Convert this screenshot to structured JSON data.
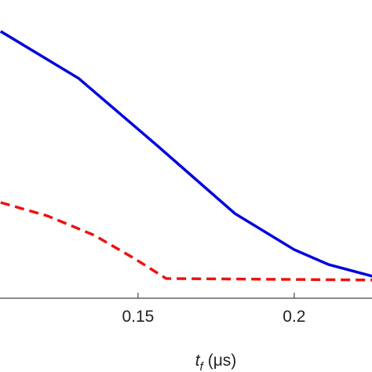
{
  "chart_data": {
    "type": "line",
    "x_label": {
      "main": "t",
      "sub": "f",
      "unit": "(μs)"
    },
    "xlim": [
      0.1058,
      0.2249
    ],
    "xticks": [
      0.15,
      0.2
    ],
    "ylim": [
      0,
      1
    ],
    "series": [
      {
        "color": "#0000dd",
        "style": "solid",
        "x": [
          0.106,
          0.131,
          0.156,
          0.181,
          0.2,
          0.211,
          0.225
        ],
        "values": [
          0.895,
          0.737,
          0.513,
          0.284,
          0.163,
          0.113,
          0.074
        ]
      },
      {
        "color": "#ee1111",
        "style": "dashed",
        "x": [
          0.106,
          0.121,
          0.136,
          0.149,
          0.159,
          0.225
        ],
        "values": [
          0.321,
          0.276,
          0.211,
          0.132,
          0.066,
          0.061
        ]
      }
    ]
  }
}
